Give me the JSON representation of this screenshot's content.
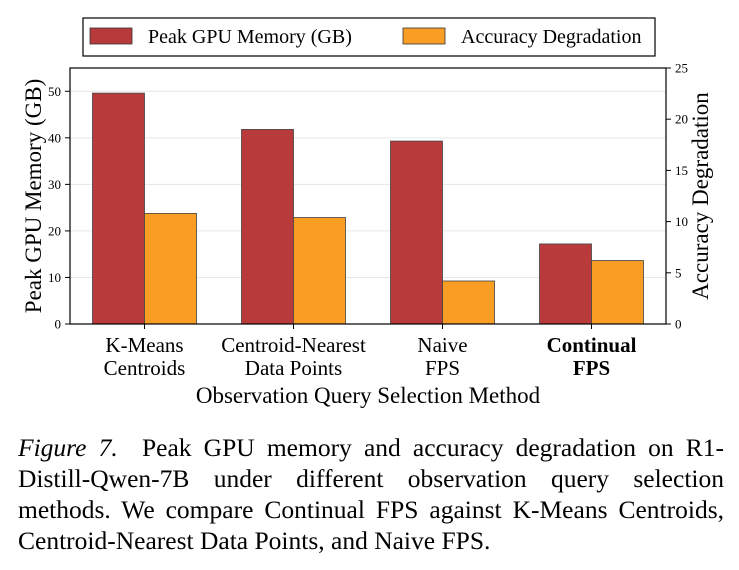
{
  "chart_data": {
    "type": "bar",
    "xlabel": "Observation Query Selection Method",
    "categories": [
      {
        "lines": [
          "K-Means",
          "Centroids"
        ],
        "bold": false
      },
      {
        "lines": [
          "Centroid-Nearest",
          "Data Points"
        ],
        "bold": false
      },
      {
        "lines": [
          "Naive",
          "FPS"
        ],
        "bold": false
      },
      {
        "lines": [
          "Continual",
          "FPS"
        ],
        "bold": true
      }
    ],
    "series": [
      {
        "name": "Peak GPU Memory (GB)",
        "axis": "left",
        "color": "#b93a3a",
        "values": [
          49.6,
          41.8,
          39.3,
          17.2
        ]
      },
      {
        "name": "Accuracy Degradation",
        "axis": "right",
        "color": "#f99d25",
        "values": [
          10.8,
          10.4,
          4.2,
          6.2
        ]
      }
    ],
    "y_left": {
      "label": "Peak GPU Memory (GB)",
      "lim": [
        0,
        55
      ],
      "ticks": [
        0,
        10,
        20,
        30,
        40,
        50
      ]
    },
    "y_right": {
      "label": "Accuracy Degradation",
      "lim": [
        0,
        25
      ],
      "ticks": [
        0,
        5,
        10,
        15,
        20,
        25
      ]
    },
    "grid": "horizontal, light",
    "legend": "top-center, above plot, framed"
  },
  "caption": {
    "figure_label": "Figure 7.",
    "text": "Peak GPU memory and accuracy degradation on R1-Distill-Qwen-7B under different observation query selection methods. We compare Continual FPS against K-Means Centroids, Centroid-Nearest Data Points, and Naive FPS."
  }
}
